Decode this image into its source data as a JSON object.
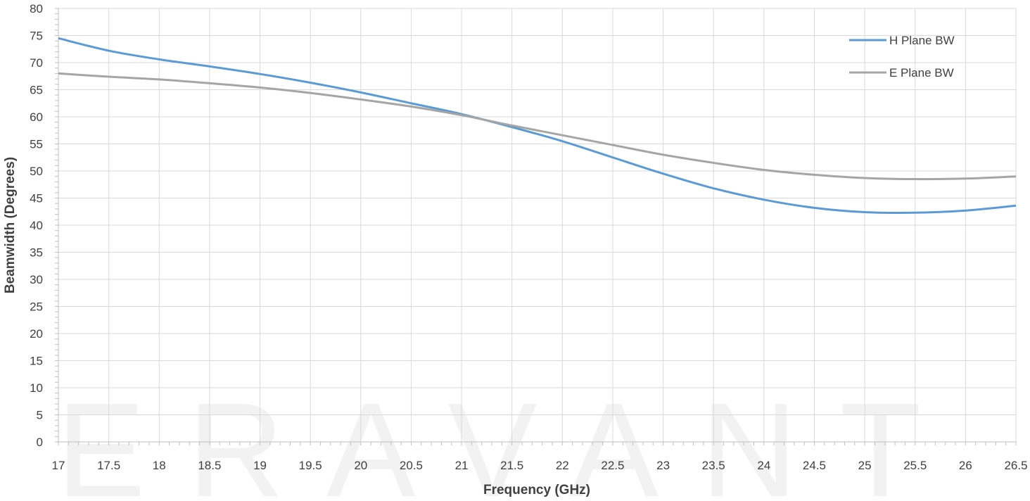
{
  "chart_data": {
    "type": "line",
    "title": "",
    "xlabel": "Frequency (GHz)",
    "ylabel": "Beamwidth (Degrees)",
    "xlim": [
      17,
      26.5
    ],
    "ylim": [
      0,
      80
    ],
    "x_ticks": [
      "17",
      "17.5",
      "18",
      "18.5",
      "19",
      "19.5",
      "20",
      "20.5",
      "21",
      "21.5",
      "22",
      "22.5",
      "23",
      "23.5",
      "24",
      "24.5",
      "25",
      "25.5",
      "26",
      "26.5"
    ],
    "y_ticks": [
      "0",
      "5",
      "10",
      "15",
      "20",
      "25",
      "30",
      "35",
      "40",
      "45",
      "50",
      "55",
      "60",
      "65",
      "70",
      "75",
      "80"
    ],
    "grid": true,
    "legend_position": "top-right",
    "x": [
      17,
      17.5,
      18,
      18.5,
      19,
      19.5,
      20,
      20.5,
      21,
      21.5,
      22,
      22.5,
      23,
      23.5,
      24,
      24.5,
      25,
      25.5,
      26,
      26.5
    ],
    "series": [
      {
        "name": "H Plane BW",
        "color": "#5b9bd5",
        "values": [
          74.5,
          72.2,
          70.6,
          69.3,
          67.9,
          66.3,
          64.5,
          62.5,
          60.5,
          58.1,
          55.5,
          52.5,
          49.5,
          46.8,
          44.7,
          43.2,
          42.4,
          42.3,
          42.7,
          43.6
        ]
      },
      {
        "name": "E Plane BW",
        "color": "#a5a5a5",
        "values": [
          68.0,
          67.4,
          66.9,
          66.2,
          65.4,
          64.4,
          63.2,
          61.9,
          60.3,
          58.4,
          56.6,
          54.8,
          53.0,
          51.5,
          50.2,
          49.3,
          48.7,
          48.5,
          48.6,
          49.0
        ]
      }
    ],
    "watermark": "ERAVANT"
  }
}
